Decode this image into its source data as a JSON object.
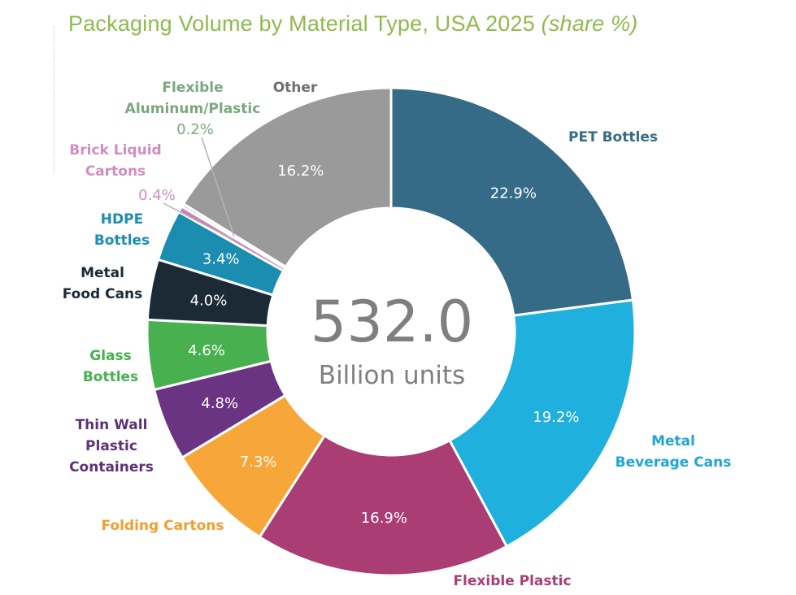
{
  "title": "Packaging Volume by Material Type, USA 2025",
  "subtitle": "(share %)",
  "center": {
    "value": "532.0",
    "unit": "Billion units"
  },
  "chart_data": {
    "type": "pie",
    "title": "Packaging Volume by Material Type, USA 2025 (share %)",
    "total": 532.0,
    "total_unit": "Billion units",
    "categories": [
      "PET Bottles",
      "Metal Beverage Cans",
      "Flexible Plastic",
      "Folding Cartons",
      "Thin Wall Plastic Containers",
      "Glass Bottles",
      "Metal Food Cans",
      "HDPE Bottles",
      "Brick Liquid Cartons",
      "Flexible Aluminum/Plastic",
      "Other"
    ],
    "values": [
      22.9,
      19.2,
      16.9,
      7.3,
      4.8,
      4.6,
      4.0,
      3.4,
      0.4,
      0.2,
      16.2
    ],
    "value_labels": [
      "22.9%",
      "19.2%",
      "16.9%",
      "7.3%",
      "4.8%",
      "4.6%",
      "4.0%",
      "3.4%",
      "0.4%",
      "0.2%",
      "16.2%"
    ],
    "colors": [
      "#356b86",
      "#1fb0dd",
      "#a93d74",
      "#f7a73a",
      "#6b3483",
      "#49b04f",
      "#1b2a35",
      "#1b8db0",
      "#c97fb8",
      "#9fc7a8",
      "#9a9a9a"
    ],
    "label_colors": [
      "#356b86",
      "#1fa5d6",
      "#a93d74",
      "#f29e2e",
      "#5e3178",
      "#49b04f",
      "#1b2a35",
      "#1b8db0",
      "#d08cc1",
      "#7aa87f",
      "#6f6f6f"
    ]
  }
}
